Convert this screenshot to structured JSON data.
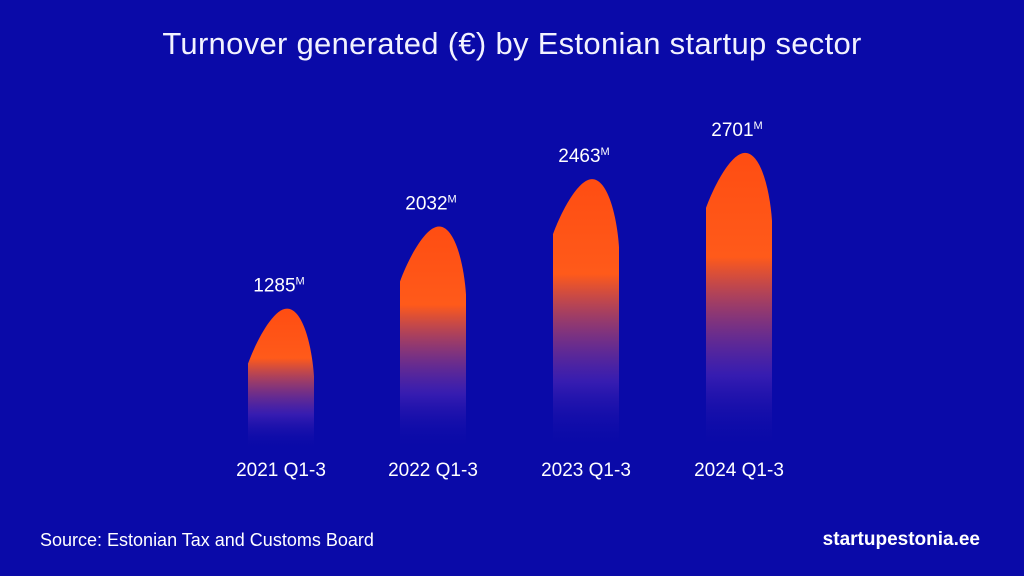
{
  "title": "Turnover generated (€) by Estonian startup sector",
  "source": "Source: Estonian Tax and Customs Board",
  "brand": "startupestonia.ee",
  "colors": {
    "background": "#0a0aa8",
    "bar_top": "#ff4d12",
    "bar_mid": "#ff5a1a",
    "text": "#ffffff"
  },
  "chart_data": {
    "type": "bar",
    "title": "Turnover generated (€) by Estonian startup sector",
    "xlabel": "",
    "ylabel": "",
    "unit_suffix": "M",
    "categories": [
      "2021 Q1-3",
      "2022 Q1-3",
      "2023 Q1-3",
      "2024 Q1-3"
    ],
    "values": [
      1285,
      2032,
      2463,
      2701
    ],
    "value_labels": [
      "1285",
      "2032",
      "2463",
      "2701"
    ],
    "grid": false,
    "legend": "none"
  }
}
